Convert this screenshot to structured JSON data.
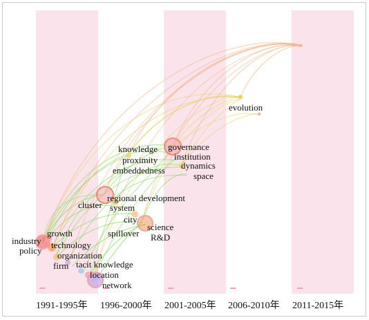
{
  "periods": [
    "1991-1995年",
    "1996-2000年",
    "2001-2005年",
    "2006-2010年",
    "2011-2015年"
  ],
  "keywords": {
    "industry": "industry",
    "policy": "policy",
    "growth": "growth",
    "technology": "technology",
    "organization": "organization",
    "firm": "firm",
    "tacit_knowledge": "tacit knowledge",
    "location": "location",
    "network": "network",
    "regional_development": "regional development",
    "cluster": "cluster",
    "system": "system",
    "city": "city",
    "spillover": "spillover",
    "science": "science",
    "rd": "R&D",
    "knowledge": "knowledge",
    "proximity": "proximity",
    "embeddedness": "embeddedness",
    "governance": "governance",
    "institution": "institution",
    "dynamics": "dynamics",
    "space": "space",
    "evolution": "evolution"
  },
  "colors": {
    "band": "#fbe3ec",
    "link_green": "#7ed957",
    "link_yellow": "#e8d36a",
    "link_orange": "#f0b080",
    "node_pink": "#f3a0a8",
    "node_red": "#ef5a5a",
    "node_purple": "#b9a0e8"
  }
}
